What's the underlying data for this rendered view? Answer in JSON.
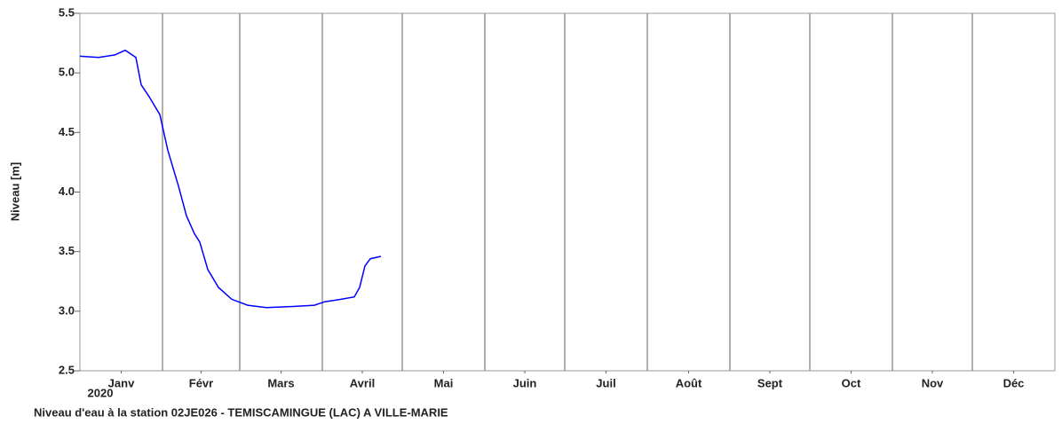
{
  "chart_data": {
    "type": "line",
    "title": "Niveau d'eau à la station 02JE026 - TEMISCAMINGUE (LAC) A VILLE-MARIE",
    "y_label": "Niveau [m]",
    "year_label": "2020",
    "xlim": [
      0,
      366
    ],
    "xticks": [
      {
        "value": 15.5,
        "label": "Janv"
      },
      {
        "value": 45.5,
        "label": "Févr"
      },
      {
        "value": 75.5,
        "label": "Mars"
      },
      {
        "value": 106,
        "label": "Avril"
      },
      {
        "value": 136.5,
        "label": "Mai"
      },
      {
        "value": 167,
        "label": "Juin"
      },
      {
        "value": 197.5,
        "label": "Juil"
      },
      {
        "value": 228.5,
        "label": "Août"
      },
      {
        "value": 259,
        "label": "Sept"
      },
      {
        "value": 289.5,
        "label": "Oct"
      },
      {
        "value": 320,
        "label": "Nov"
      },
      {
        "value": 350.5,
        "label": "Déc"
      }
    ],
    "x_grid": [
      31,
      60,
      91,
      121,
      152,
      182,
      213,
      244,
      274,
      305,
      335
    ],
    "ylim": [
      2.5,
      5.5
    ],
    "yticks": [
      2.5,
      {
        "value": 3,
        "label": "3.0"
      },
      3.5,
      {
        "value": 4,
        "label": "4.0"
      },
      4.5,
      {
        "value": 5,
        "label": "5.0"
      },
      5.5
    ],
    "grid": true,
    "series": [
      {
        "name": "Niveau",
        "color": "#0000ff",
        "x": [
          0,
          7,
          13,
          17,
          21,
          23,
          26,
          30,
          33,
          37,
          40,
          43,
          45,
          48,
          52,
          57,
          63,
          70,
          80,
          88,
          92,
          98,
          103,
          105,
          107,
          109,
          113
        ],
        "values": [
          5.14,
          5.13,
          5.15,
          5.19,
          5.13,
          4.9,
          4.8,
          4.65,
          4.35,
          4.05,
          3.8,
          3.65,
          3.58,
          3.35,
          3.2,
          3.1,
          3.05,
          3.03,
          3.04,
          3.05,
          3.08,
          3.1,
          3.12,
          3.2,
          3.38,
          3.44,
          3.46
        ]
      }
    ]
  }
}
